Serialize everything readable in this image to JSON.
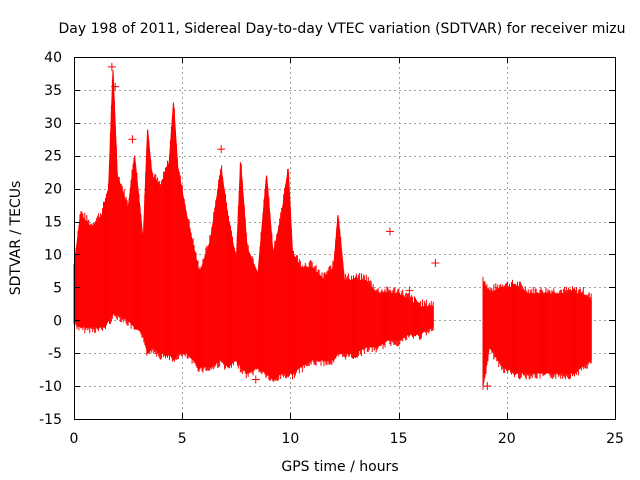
{
  "chart_data": {
    "type": "scatter",
    "title": "Day 198 of 2011, Sidereal Day-to-day VTEC variation (SDTVAR) for receiver mizu",
    "xlabel": "GPS time / hours",
    "ylabel": "SDTVAR / TECUs",
    "xlim": [
      0,
      25
    ],
    "ylim": [
      -15,
      40
    ],
    "xticks": [
      "0",
      "5",
      "10",
      "15",
      "20",
      "25"
    ],
    "yticks": [
      "-15",
      "-10",
      "-5",
      "0",
      "5",
      "10",
      "15",
      "20",
      "25",
      "30",
      "35",
      "40"
    ],
    "grid": true,
    "series": [
      {
        "name": "SDTVAR",
        "color": "#ff0000",
        "marker": "+",
        "envelope": {
          "x": [
            0.0,
            0.3,
            0.8,
            1.3,
            1.6,
            1.8,
            2.0,
            2.5,
            2.8,
            3.2,
            3.4,
            3.6,
            4.0,
            4.4,
            4.6,
            4.8,
            5.2,
            5.8,
            6.3,
            6.8,
            7.1,
            7.5,
            7.7,
            8.0,
            8.5,
            8.9,
            9.2,
            9.6,
            9.9,
            10.1,
            10.5,
            11.0,
            11.5,
            12.0,
            12.2,
            12.5,
            13.0,
            13.5,
            14.0,
            14.5,
            15.0,
            15.5,
            16.0,
            16.6
          ],
          "upper": [
            8,
            16,
            14,
            16,
            20,
            38,
            22,
            17,
            25,
            12,
            29,
            22,
            20,
            24,
            33,
            23,
            16,
            7,
            12,
            23,
            16,
            9,
            24,
            11,
            7,
            22,
            10,
            16,
            23,
            10,
            8,
            8,
            6,
            8,
            16,
            6,
            6,
            6,
            4,
            4,
            4,
            3,
            2,
            2
          ],
          "lower": [
            0,
            -1,
            -1,
            -1,
            0,
            1,
            1,
            0,
            -1,
            -2,
            -5,
            -4,
            -5,
            -5,
            -6,
            -5,
            -5,
            -7,
            -7,
            -6,
            -7,
            -6,
            -7,
            -8,
            -7,
            -8,
            -9,
            -8,
            -8,
            -8,
            -7,
            -6,
            -6,
            -6,
            -5,
            -5,
            -5,
            -4,
            -4,
            -3,
            -3,
            -2,
            -2,
            -1
          ]
        },
        "envelope2": {
          "x": [
            18.9,
            19.2,
            19.8,
            20.5,
            21.0,
            22.0,
            23.0,
            23.5,
            23.9
          ],
          "upper": [
            6,
            4,
            5,
            5,
            4,
            4,
            4,
            4,
            3
          ],
          "lower": [
            -10,
            -4,
            -7,
            -8,
            -8,
            -8,
            -8,
            -7,
            -6
          ]
        },
        "outliers": [
          {
            "x": 1.75,
            "y": 38.5
          },
          {
            "x": 1.9,
            "y": 35.5
          },
          {
            "x": 2.7,
            "y": 27.5
          },
          {
            "x": 6.8,
            "y": 26
          },
          {
            "x": 14.6,
            "y": 13.5
          },
          {
            "x": 16.7,
            "y": 8.7
          },
          {
            "x": 15.5,
            "y": 4.5
          },
          {
            "x": 8.4,
            "y": -9
          },
          {
            "x": 19.1,
            "y": -10
          }
        ]
      }
    ]
  }
}
